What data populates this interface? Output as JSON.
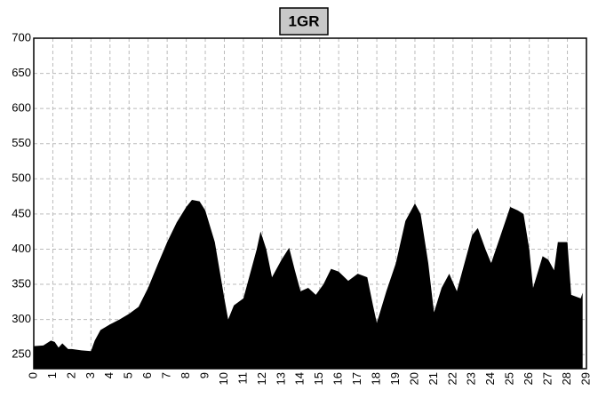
{
  "chart_data": {
    "type": "area",
    "title": "1GR",
    "color": "#000000",
    "grid": true,
    "x": [
      0,
      0.5,
      0.9,
      1.1,
      1.3,
      1.5,
      1.8,
      2,
      2.5,
      3,
      3.2,
      3.5,
      4,
      4.5,
      5,
      5.5,
      6,
      6.5,
      7,
      7.5,
      8,
      8.3,
      8.7,
      9,
      9.5,
      10,
      10.2,
      10.5,
      11,
      11.3,
      11.7,
      11.9,
      12.2,
      12.5,
      13,
      13.4,
      13.7,
      14,
      14.4,
      14.8,
      15.2,
      15.6,
      16,
      16.5,
      17,
      17.5,
      17.8,
      18,
      18.5,
      19,
      19.5,
      20,
      20.3,
      20.7,
      21,
      21.4,
      21.8,
      22.2,
      22.6,
      23,
      23.3,
      23.7,
      24,
      24.5,
      25,
      25.4,
      25.7,
      26,
      26.2,
      26.7,
      27,
      27.3,
      27.5,
      28,
      28.2,
      28.7,
      28.8
    ],
    "values": [
      262,
      263,
      270,
      268,
      260,
      266,
      258,
      258,
      256,
      255,
      270,
      285,
      293,
      300,
      308,
      318,
      345,
      378,
      410,
      438,
      460,
      470,
      468,
      455,
      410,
      330,
      300,
      320,
      330,
      360,
      400,
      425,
      400,
      360,
      385,
      402,
      370,
      340,
      345,
      335,
      350,
      372,
      368,
      355,
      365,
      360,
      320,
      295,
      340,
      380,
      440,
      465,
      450,
      380,
      310,
      345,
      365,
      340,
      380,
      420,
      430,
      400,
      380,
      420,
      460,
      455,
      450,
      400,
      345,
      390,
      385,
      370,
      410,
      410,
      335,
      330,
      338
    ],
    "xlim": [
      0,
      29
    ],
    "xticks": [
      0,
      1,
      2,
      3,
      4,
      5,
      6,
      7,
      8,
      9,
      10,
      11,
      12,
      13,
      14,
      15,
      16,
      17,
      18,
      19,
      20,
      21,
      22,
      23,
      24,
      25,
      26,
      27,
      28,
      29
    ],
    "ylim": [
      230,
      700
    ],
    "yticks": [
      250,
      300,
      350,
      400,
      450,
      500,
      550,
      600,
      650,
      700
    ]
  }
}
